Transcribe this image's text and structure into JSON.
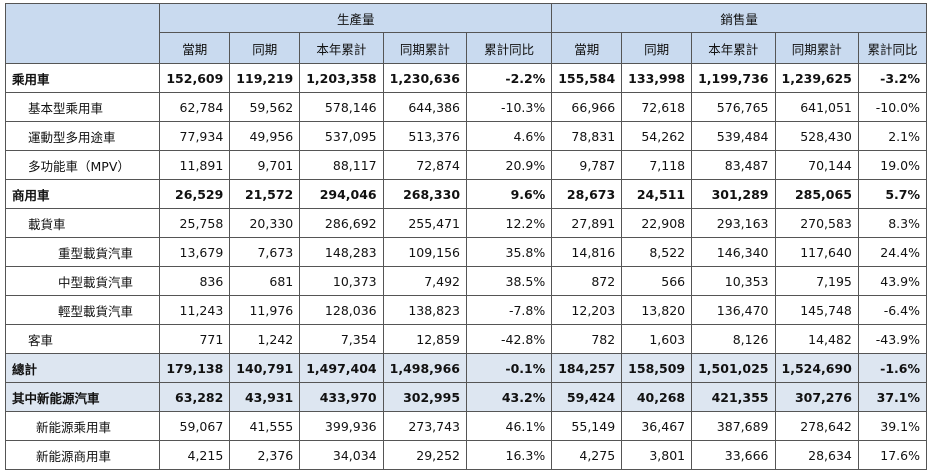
{
  "colors": {
    "header_bg": "#c9daef",
    "highlight_bg": "#dde6f1",
    "border": "#555555"
  },
  "header": {
    "group_production": "生產量",
    "group_sales": "銷售量",
    "columns": [
      "當期",
      "同期",
      "本年累計",
      "同期累計",
      "累計同比"
    ]
  },
  "rows": [
    {
      "label": "乘用車",
      "level": 0,
      "bold": true,
      "highlight": false,
      "production": [
        "152,609",
        "119,219",
        "1,203,358",
        "1,230,636",
        "-2.2%"
      ],
      "sales": [
        "155,584",
        "133,998",
        "1,199,736",
        "1,239,625",
        "-3.2%"
      ]
    },
    {
      "label": "基本型乘用車",
      "level": 1,
      "bold": false,
      "highlight": false,
      "production": [
        "62,784",
        "59,562",
        "578,146",
        "644,386",
        "-10.3%"
      ],
      "sales": [
        "66,966",
        "72,618",
        "576,765",
        "641,051",
        "-10.0%"
      ]
    },
    {
      "label": "運動型多用途車",
      "level": 1,
      "bold": false,
      "highlight": false,
      "production": [
        "77,934",
        "49,956",
        "537,095",
        "513,376",
        "4.6%"
      ],
      "sales": [
        "78,831",
        "54,262",
        "539,484",
        "528,430",
        "2.1%"
      ]
    },
    {
      "label": "多功能車（MPV）",
      "level": 1,
      "bold": false,
      "highlight": false,
      "production": [
        "11,891",
        "9,701",
        "88,117",
        "72,874",
        "20.9%"
      ],
      "sales": [
        "9,787",
        "7,118",
        "83,487",
        "70,144",
        "19.0%"
      ]
    },
    {
      "label": "商用車",
      "level": 0,
      "bold": true,
      "highlight": false,
      "production": [
        "26,529",
        "21,572",
        "294,046",
        "268,330",
        "9.6%"
      ],
      "sales": [
        "28,673",
        "24,511",
        "301,289",
        "285,065",
        "5.7%"
      ]
    },
    {
      "label": "載貨車",
      "level": 1,
      "bold": false,
      "highlight": false,
      "production": [
        "25,758",
        "20,330",
        "286,692",
        "255,471",
        "12.2%"
      ],
      "sales": [
        "27,891",
        "22,908",
        "293,163",
        "270,583",
        "8.3%"
      ]
    },
    {
      "label": "重型載貨汽車",
      "level": 2,
      "bold": false,
      "highlight": false,
      "production": [
        "13,679",
        "7,673",
        "148,283",
        "109,156",
        "35.8%"
      ],
      "sales": [
        "14,816",
        "8,522",
        "146,340",
        "117,640",
        "24.4%"
      ]
    },
    {
      "label": "中型載貨汽車",
      "level": 2,
      "bold": false,
      "highlight": false,
      "production": [
        "836",
        "681",
        "10,373",
        "7,492",
        "38.5%"
      ],
      "sales": [
        "872",
        "566",
        "10,353",
        "7,195",
        "43.9%"
      ]
    },
    {
      "label": "輕型載貨汽車",
      "level": 2,
      "bold": false,
      "highlight": false,
      "production": [
        "11,243",
        "11,976",
        "128,036",
        "138,823",
        "-7.8%"
      ],
      "sales": [
        "12,203",
        "13,820",
        "136,470",
        "145,748",
        "-6.4%"
      ]
    },
    {
      "label": "客車",
      "level": 1,
      "bold": false,
      "highlight": false,
      "production": [
        "771",
        "1,242",
        "7,354",
        "12,859",
        "-42.8%"
      ],
      "sales": [
        "782",
        "1,603",
        "8,126",
        "14,482",
        "-43.9%"
      ]
    },
    {
      "label": "總計",
      "level": 0,
      "bold": true,
      "highlight": true,
      "production": [
        "179,138",
        "140,791",
        "1,497,404",
        "1,498,966",
        "-0.1%"
      ],
      "sales": [
        "184,257",
        "158,509",
        "1,501,025",
        "1,524,690",
        "-1.6%"
      ]
    },
    {
      "label": "其中新能源汽車",
      "level": 0,
      "bold": true,
      "highlight": true,
      "production": [
        "63,282",
        "43,931",
        "433,970",
        "302,995",
        "43.2%"
      ],
      "sales": [
        "59,424",
        "40,268",
        "421,355",
        "307,276",
        "37.1%"
      ]
    },
    {
      "label": "新能源乘用車",
      "level": 3,
      "bold": false,
      "highlight": false,
      "production": [
        "59,067",
        "41,555",
        "399,936",
        "273,743",
        "46.1%"
      ],
      "sales": [
        "55,149",
        "36,467",
        "387,689",
        "278,642",
        "39.1%"
      ]
    },
    {
      "label": "新能源商用車",
      "level": 3,
      "bold": false,
      "highlight": false,
      "production": [
        "4,215",
        "2,376",
        "34,034",
        "29,252",
        "16.3%"
      ],
      "sales": [
        "4,275",
        "3,801",
        "33,666",
        "28,634",
        "17.6%"
      ]
    }
  ]
}
